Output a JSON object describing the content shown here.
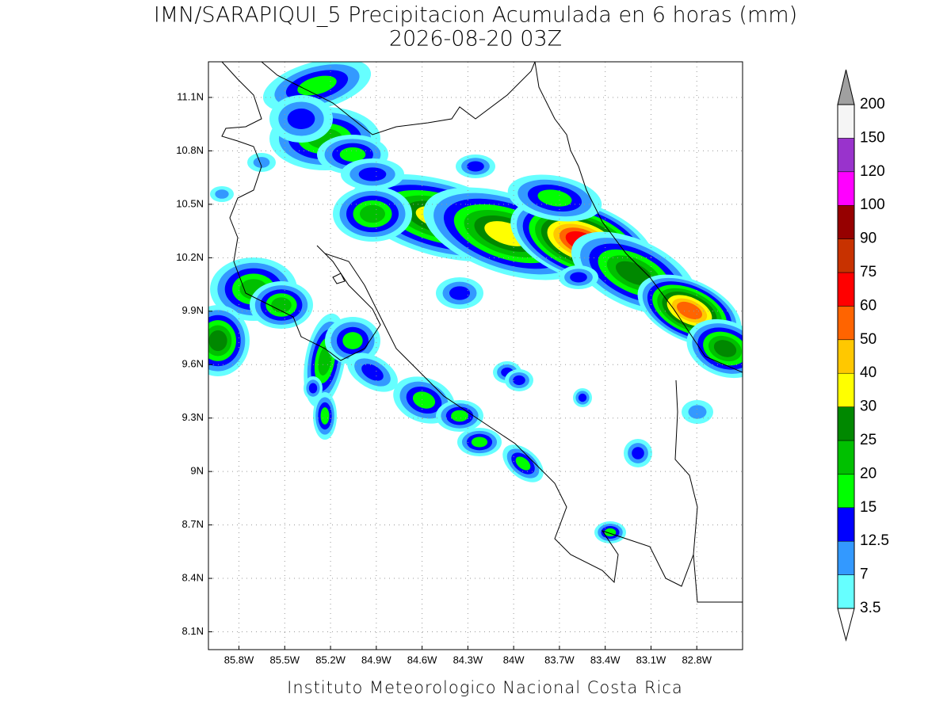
{
  "header": {
    "title": "IMN/SARAPIQUI_5 Precipitacion Acumulada en 6 horas (mm)",
    "subtitle": "2026-08-20 03Z"
  },
  "map": {
    "xlim": [
      -86.0,
      -82.5
    ],
    "ylim": [
      8.0,
      11.3
    ],
    "xticks": [
      {
        "value": -85.8,
        "label": "85.8W"
      },
      {
        "value": -85.5,
        "label": "85.5W"
      },
      {
        "value": -85.2,
        "label": "85.2W"
      },
      {
        "value": -84.9,
        "label": "84.9W"
      },
      {
        "value": -84.6,
        "label": "84.6W"
      },
      {
        "value": -84.3,
        "label": "84.3W"
      },
      {
        "value": -84.0,
        "label": "84W"
      },
      {
        "value": -83.7,
        "label": "83.7W"
      },
      {
        "value": -83.4,
        "label": "83.4W"
      },
      {
        "value": -83.1,
        "label": "83.1W"
      },
      {
        "value": -82.8,
        "label": "82.8W"
      }
    ],
    "yticks": [
      {
        "value": 8.1,
        "label": "8.1N"
      },
      {
        "value": 8.4,
        "label": "8.4N"
      },
      {
        "value": 8.7,
        "label": "8.7N"
      },
      {
        "value": 9.0,
        "label": "9N"
      },
      {
        "value": 9.3,
        "label": "9.3N"
      },
      {
        "value": 9.6,
        "label": "9.6N"
      },
      {
        "value": 9.9,
        "label": "9.9N"
      },
      {
        "value": 10.2,
        "label": "10.2N"
      },
      {
        "value": 10.5,
        "label": "10.5N"
      },
      {
        "value": 10.8,
        "label": "10.8N"
      },
      {
        "value": 11.1,
        "label": "11.1N"
      }
    ],
    "grid": true
  },
  "colorbar": {
    "levels": [
      3.5,
      7,
      12.5,
      15,
      20,
      25,
      30,
      40,
      50,
      60,
      75,
      90,
      100,
      120,
      150,
      200
    ],
    "colors": [
      "#ffffff",
      "#66ffff",
      "#3399ff",
      "#0000ff",
      "#00ff00",
      "#00c000",
      "#008800",
      "#ffff00",
      "#ffc800",
      "#ff6400",
      "#ff0000",
      "#c83200",
      "#960000",
      "#ff00ff",
      "#9933cc",
      "#f5f5f5",
      "#a0a0a0"
    ]
  },
  "footer": "Instituto Meteorologico Nacional Costa Rica"
}
